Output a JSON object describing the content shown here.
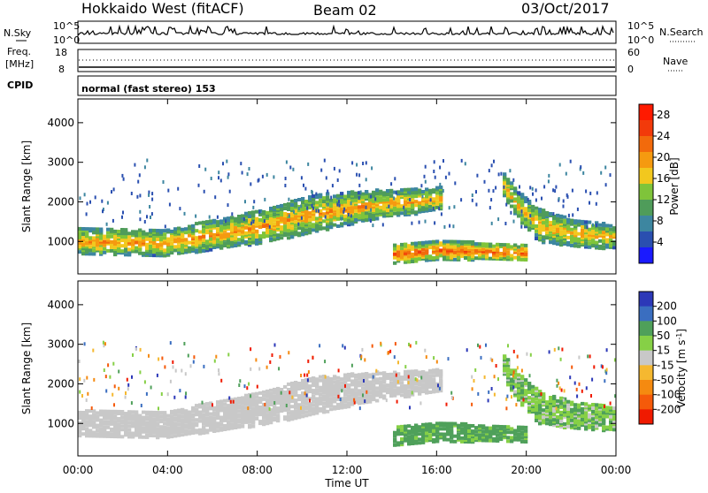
{
  "header": {
    "title": "Hokkaido West (fitACF)",
    "beam": "Beam 02",
    "date": "03/Oct/2017"
  },
  "noise_panel": {
    "left_label": "N.Sky",
    "right_label": "N.Search",
    "left_ticks": [
      "10^5",
      "10^0"
    ],
    "right_ticks": [
      "10^5",
      "10^0"
    ]
  },
  "freq_panel": {
    "left_label_1": "Freq.",
    "left_label_2": "[MHz]",
    "right_label": "Nave",
    "left_ticks": [
      "18",
      "8"
    ],
    "right_ticks": [
      "60",
      "0"
    ]
  },
  "cpid_panel": {
    "label": "CPID",
    "text": "normal (fast stereo) 153"
  },
  "chart_data": [
    {
      "type": "heatmap",
      "title": "",
      "variable": "Power",
      "ylabel": "Slant Range [km]",
      "xlabel": "Time UT",
      "xlim": [
        "00:00",
        "24:00"
      ],
      "ylim": [
        180,
        4600
      ],
      "yticks": [
        "1000",
        "2000",
        "3000",
        "4000"
      ],
      "colorbar_label": "Power [dB]",
      "colorbar_ticks": [
        "4",
        "8",
        "12",
        "16",
        "20",
        "24",
        "28"
      ],
      "colorbar_range": [
        0,
        30
      ],
      "colors": [
        "#1a1aff",
        "#2a4fb0",
        "#3d86a0",
        "#4f9c5a",
        "#7fc43a",
        "#f2c81e",
        "#f59a10",
        "#f26a0c",
        "#f23a0a",
        "#ff1a00"
      ],
      "bands": [
        {
          "t": [
            0,
            3.8,
            8,
            10.5,
            13.5,
            15,
            16.2
          ],
          "center_km": [
            1050,
            1000,
            1400,
            1750,
            2000,
            2050,
            2150
          ],
          "width_km": [
            350,
            330,
            420,
            480,
            350,
            320,
            280
          ],
          "power_db": 20
        },
        {
          "t": [
            18.8,
            19.5,
            20.5,
            22,
            24
          ],
          "center_km": [
            2600,
            2000,
            1450,
            1250,
            1150
          ],
          "width_km": [
            300,
            350,
            420,
            350,
            300
          ],
          "power_db": 19
        },
        {
          "t": [
            14,
            16,
            17.8,
            20
          ],
          "center_km": [
            720,
            820,
            800,
            760
          ],
          "width_km": [
            240,
            260,
            220,
            200
          ],
          "power_db": 24
        }
      ]
    },
    {
      "type": "heatmap",
      "title": "",
      "variable": "Velocity",
      "ylabel": "Slant Range [km]",
      "xlabel": "Time UT",
      "xlim": [
        "00:00",
        "24:00"
      ],
      "ylim": [
        180,
        4600
      ],
      "yticks": [
        "1000",
        "2000",
        "3000",
        "4000"
      ],
      "xticks": [
        "00:00",
        "04:00",
        "08:00",
        "12:00",
        "16:00",
        "20:00",
        "00:00"
      ],
      "colorbar_label": "Velocity [m s^-1]",
      "colorbar_ticks": [
        "200",
        "100",
        "50",
        "15",
        "-15",
        "-50",
        "-100",
        "-200"
      ],
      "colors": [
        "#2c38b8",
        "#3a6ec0",
        "#4fa05a",
        "#86d046",
        "#c8c8c8",
        "#f5b830",
        "#f58a10",
        "#f55a0a",
        "#f01a00"
      ],
      "bands": [
        {
          "t": [
            0,
            3.8,
            8,
            10.5,
            13.5,
            15,
            16.2
          ],
          "center_km": [
            1050,
            1000,
            1400,
            1750,
            2000,
            2050,
            2150
          ],
          "width_km": [
            350,
            330,
            420,
            480,
            350,
            320,
            280
          ],
          "velocity_ms": 0
        },
        {
          "t": [
            18.8,
            19.5,
            20.5,
            22,
            24
          ],
          "center_km": [
            2600,
            2000,
            1450,
            1250,
            1150
          ],
          "width_km": [
            300,
            350,
            420,
            350,
            300
          ],
          "velocity_ms": 25
        },
        {
          "t": [
            14,
            16,
            17.8,
            20
          ],
          "center_km": [
            720,
            820,
            800,
            760
          ],
          "width_km": [
            240,
            260,
            220,
            200
          ],
          "velocity_ms": 40
        }
      ]
    }
  ]
}
